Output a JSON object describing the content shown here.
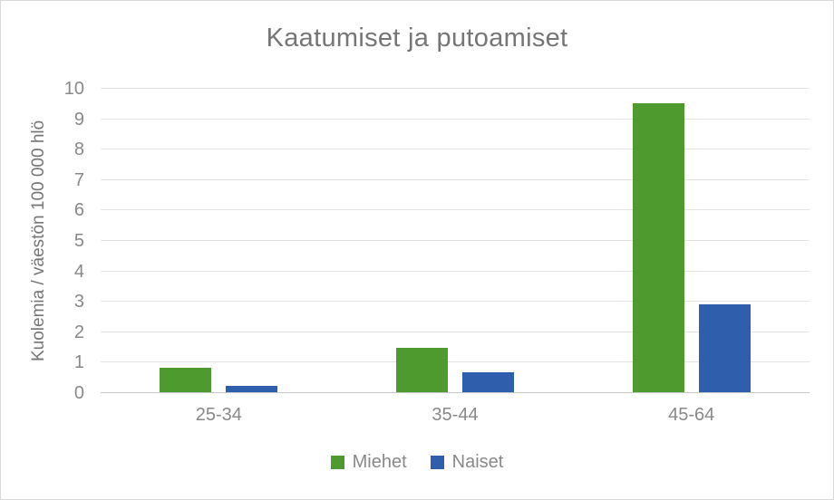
{
  "chart_data": {
    "type": "bar",
    "title": "Kaatumiset ja putoamiset",
    "ylabel": "Kuolemia / väestön 100 000 hlö",
    "xlabel": "",
    "categories": [
      "25-34",
      "35-44",
      "45-64"
    ],
    "series": [
      {
        "name": "Miehet",
        "color": "#4f9a2e",
        "values": [
          0.8,
          1.45,
          9.5
        ]
      },
      {
        "name": "Naiset",
        "color": "#2f5fac",
        "values": [
          0.2,
          0.65,
          2.9
        ]
      }
    ],
    "ylim": [
      0,
      10
    ],
    "yticks": [
      0,
      1,
      2,
      3,
      4,
      5,
      6,
      7,
      8,
      9,
      10
    ],
    "grid": true,
    "legend_position": "bottom"
  },
  "colors": {
    "miehet_green": "#4f9a2e",
    "naiset_blue": "#2f5fac",
    "title_text": "#767676",
    "axis_text": "#898989",
    "gridline": "#e3e3e3",
    "axis_line": "#c8c8c8",
    "frame_border": "#d9d9d9"
  }
}
